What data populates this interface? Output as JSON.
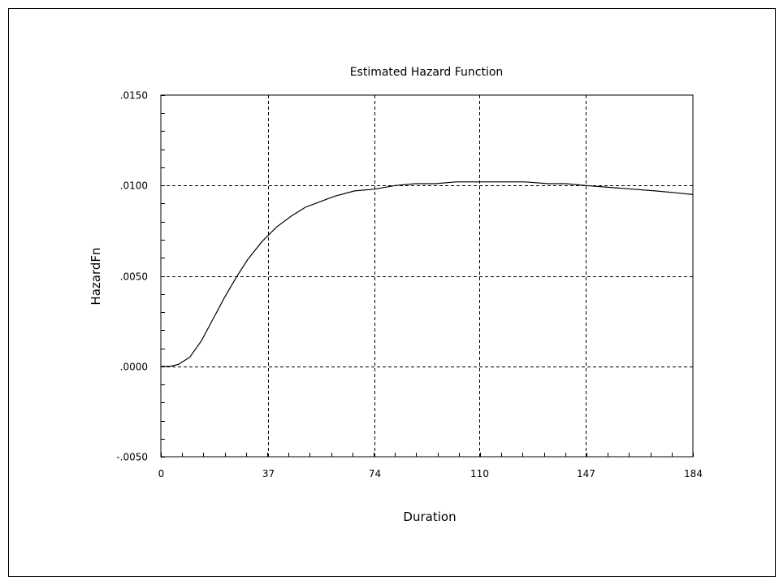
{
  "chart_data": {
    "type": "line",
    "title": "Estimated Hazard Function",
    "xlabel": "Duration",
    "ylabel": "HazardFn",
    "xlim": [
      0,
      184
    ],
    "ylim": [
      -0.005,
      0.015
    ],
    "x_ticks": [
      "0",
      "37",
      "74",
      "110",
      "147",
      "184"
    ],
    "x_tick_values": [
      0,
      37,
      74,
      110,
      147,
      184
    ],
    "y_ticks": [
      ".0150",
      ".0100",
      ".0050",
      ".0000",
      "-.0050"
    ],
    "y_tick_values": [
      0.015,
      0.01,
      0.005,
      0.0,
      -0.005
    ],
    "grid": true,
    "series": [
      {
        "x": [
          0,
          3,
          6,
          10,
          14,
          18,
          22,
          26,
          30,
          35,
          40,
          45,
          50,
          55,
          60,
          67,
          74,
          81,
          88,
          95,
          102,
          110,
          118,
          126,
          134,
          140,
          147,
          155,
          163,
          171,
          178,
          184
        ],
        "y": [
          0.0,
          0.0,
          0.0001,
          0.0005,
          0.0014,
          0.0026,
          0.0038,
          0.0049,
          0.0059,
          0.0069,
          0.0077,
          0.0083,
          0.0088,
          0.0091,
          0.0094,
          0.0097,
          0.0098,
          0.01,
          0.0101,
          0.0101,
          0.0102,
          0.0102,
          0.0102,
          0.0102,
          0.0101,
          0.0101,
          0.01,
          0.0099,
          0.0098,
          0.0097,
          0.0096,
          0.0095
        ]
      }
    ]
  }
}
